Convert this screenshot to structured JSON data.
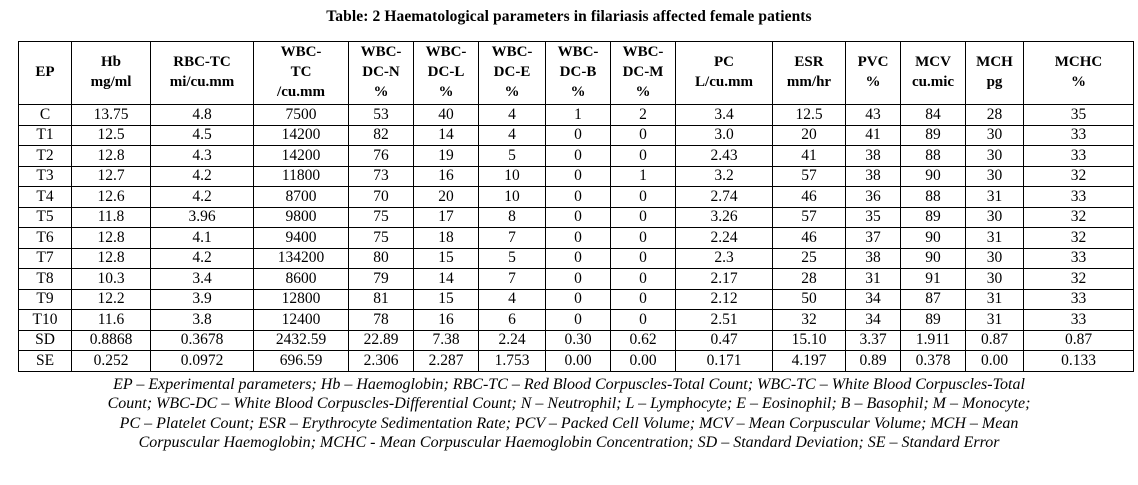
{
  "title": "Table: 2 Haematological parameters in filariasis affected female patients",
  "colors": {
    "text": "#000000",
    "border": "#000000",
    "background": "#ffffff"
  },
  "table": {
    "columns": [
      {
        "id": "ep",
        "lines": [
          "EP"
        ]
      },
      {
        "id": "hb",
        "lines": [
          "Hb",
          "mg/ml"
        ]
      },
      {
        "id": "rbc-tc",
        "lines": [
          "RBC-TC",
          "mi/cu.mm"
        ]
      },
      {
        "id": "wbc-tc",
        "lines": [
          "WBC-",
          "TC",
          "/cu.mm"
        ]
      },
      {
        "id": "wbc-dc-n",
        "lines": [
          "WBC-",
          "DC-N",
          "%"
        ]
      },
      {
        "id": "wbc-dc-l",
        "lines": [
          "WBC-",
          "DC-L",
          "%"
        ]
      },
      {
        "id": "wbc-dc-e",
        "lines": [
          "WBC-",
          "DC-E",
          "%"
        ]
      },
      {
        "id": "wbc-dc-b",
        "lines": [
          "WBC-",
          "DC-B",
          "%"
        ]
      },
      {
        "id": "wbc-dc-m",
        "lines": [
          "WBC-",
          "DC-M",
          "%"
        ]
      },
      {
        "id": "pc",
        "lines": [
          "PC",
          "L/cu.mm"
        ]
      },
      {
        "id": "esr",
        "lines": [
          "ESR",
          "mm/hr"
        ]
      },
      {
        "id": "pvc",
        "lines": [
          "PVC",
          "%"
        ]
      },
      {
        "id": "mcv",
        "lines": [
          "MCV",
          "cu.mic"
        ]
      },
      {
        "id": "mch",
        "lines": [
          "MCH",
          "pg"
        ]
      },
      {
        "id": "mchc",
        "lines": [
          "MCHC",
          "%"
        ]
      }
    ],
    "rows": [
      [
        "C",
        "13.75",
        "4.8",
        "7500",
        "53",
        "40",
        "4",
        "1",
        "2",
        "3.4",
        "12.5",
        "43",
        "84",
        "28",
        "35"
      ],
      [
        "T1",
        "12.5",
        "4.5",
        "14200",
        "82",
        "14",
        "4",
        "0",
        "0",
        "3.0",
        "20",
        "41",
        "89",
        "30",
        "33"
      ],
      [
        "T2",
        "12.8",
        "4.3",
        "14200",
        "76",
        "19",
        "5",
        "0",
        "0",
        "2.43",
        "41",
        "38",
        "88",
        "30",
        "33"
      ],
      [
        "T3",
        "12.7",
        "4.2",
        "11800",
        "73",
        "16",
        "10",
        "0",
        "1",
        "3.2",
        "57",
        "38",
        "90",
        "30",
        "32"
      ],
      [
        "T4",
        "12.6",
        "4.2",
        "8700",
        "70",
        "20",
        "10",
        "0",
        "0",
        "2.74",
        "46",
        "36",
        "88",
        "31",
        "33"
      ],
      [
        "T5",
        "11.8",
        "3.96",
        "9800",
        "75",
        "17",
        "8",
        "0",
        "0",
        "3.26",
        "57",
        "35",
        "89",
        "30",
        "32"
      ],
      [
        "T6",
        "12.8",
        "4.1",
        "9400",
        "75",
        "18",
        "7",
        "0",
        "0",
        "2.24",
        "46",
        "37",
        "90",
        "31",
        "32"
      ],
      [
        "T7",
        "12.8",
        "4.2",
        "134200",
        "80",
        "15",
        "5",
        "0",
        "0",
        "2.3",
        "25",
        "38",
        "90",
        "30",
        "33"
      ],
      [
        "T8",
        "10.3",
        "3.4",
        "8600",
        "79",
        "14",
        "7",
        "0",
        "0",
        "2.17",
        "28",
        "31",
        "91",
        "30",
        "32"
      ],
      [
        "T9",
        "12.2",
        "3.9",
        "12800",
        "81",
        "15",
        "4",
        "0",
        "0",
        "2.12",
        "50",
        "34",
        "87",
        "31",
        "33"
      ],
      [
        "T10",
        "11.6",
        "3.8",
        "12400",
        "78",
        "16",
        "6",
        "0",
        "0",
        "2.51",
        "32",
        "34",
        "89",
        "31",
        "33"
      ],
      [
        "SD",
        "0.8868",
        "0.3678",
        "2432.59",
        "22.89",
        "7.38",
        "2.24",
        "0.30",
        "0.62",
        "0.47",
        "15.10",
        "3.37",
        "1.911",
        "0.87",
        "0.87"
      ],
      [
        "SE",
        "0.252",
        "0.0972",
        "696.59",
        "2.306",
        "2.287",
        "1.753",
        "0.00",
        "0.00",
        "0.171",
        "4.197",
        "0.89",
        "0.378",
        "0.00",
        "0.133"
      ]
    ]
  },
  "footnote_lines": [
    "EP – Experimental parameters; Hb – Haemoglobin; RBC-TC – Red Blood Corpuscles-Total Count; WBC-TC – White Blood Corpuscles-Total",
    "Count; WBC-DC – White Blood Corpuscles-Differential Count; N – Neutrophil; L – Lymphocyte; E – Eosinophil; B – Basophil; M – Monocyte;",
    "PC – Platelet Count; ESR – Erythrocyte Sedimentation Rate; PCV – Packed Cell Volume; MCV – Mean Corpuscular Volume; MCH – Mean",
    "Corpuscular Haemoglobin; MCHC - Mean Corpuscular Haemoglobin Concentration; SD – Standard Deviation; SE – Standard Error"
  ]
}
